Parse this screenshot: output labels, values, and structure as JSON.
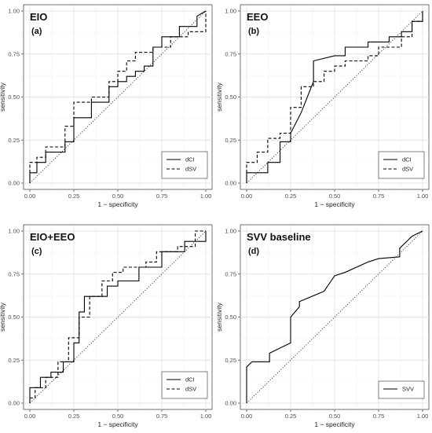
{
  "chart_data": [
    {
      "type": "line",
      "title": "EIO",
      "subtitle": "(a)",
      "xlabel": "1 − specificity",
      "ylabel": "sensitivity",
      "xlim": [
        0,
        1
      ],
      "ylim": [
        0,
        1
      ],
      "x_ticks": [
        "0.00",
        "0.25",
        "0.50",
        "0.75",
        "1.00"
      ],
      "y_ticks": [
        "0.00",
        "0.25",
        "0.50",
        "0.75",
        "1.00"
      ],
      "grid": true,
      "legend_position": "bottom-right",
      "diagonal": true,
      "series": [
        {
          "name": "dCI",
          "style": "solid",
          "x": [
            0,
            0,
            0.04,
            0.04,
            0.09,
            0.09,
            0.2,
            0.2,
            0.25,
            0.25,
            0.35,
            0.35,
            0.45,
            0.45,
            0.5,
            0.5,
            0.55,
            0.55,
            0.6,
            0.6,
            0.65,
            0.65,
            0.7,
            0.7,
            0.75,
            0.75,
            0.85,
            0.85,
            0.95,
            0.95,
            1.0
          ],
          "y": [
            0,
            0.06,
            0.06,
            0.12,
            0.12,
            0.18,
            0.18,
            0.24,
            0.24,
            0.38,
            0.38,
            0.47,
            0.47,
            0.56,
            0.56,
            0.59,
            0.59,
            0.62,
            0.62,
            0.65,
            0.65,
            0.68,
            0.68,
            0.79,
            0.79,
            0.85,
            0.85,
            0.91,
            0.91,
            0.97,
            1.0
          ]
        },
        {
          "name": "dSV",
          "style": "dashed",
          "x": [
            0,
            0,
            0.04,
            0.04,
            0.09,
            0.09,
            0.2,
            0.2,
            0.25,
            0.25,
            0.35,
            0.35,
            0.45,
            0.45,
            0.5,
            0.5,
            0.55,
            0.55,
            0.6,
            0.6,
            0.7,
            0.7,
            0.8,
            0.8,
            0.9,
            0.9,
            1.0,
            1.0
          ],
          "y": [
            0,
            0.12,
            0.12,
            0.15,
            0.15,
            0.21,
            0.21,
            0.33,
            0.33,
            0.47,
            0.47,
            0.5,
            0.5,
            0.59,
            0.59,
            0.65,
            0.65,
            0.71,
            0.71,
            0.76,
            0.76,
            0.79,
            0.79,
            0.85,
            0.85,
            0.88,
            0.88,
            1.0
          ]
        }
      ]
    },
    {
      "type": "line",
      "title": "EEO",
      "subtitle": "(b)",
      "xlabel": "1 − specificity",
      "ylabel": "sensitivity",
      "xlim": [
        0,
        1
      ],
      "ylim": [
        0,
        1
      ],
      "x_ticks": [
        "0.00",
        "0.25",
        "0.50",
        "0.75",
        "1.00"
      ],
      "y_ticks": [
        "0.00",
        "0.25",
        "0.50",
        "0.75",
        "1.00"
      ],
      "grid": true,
      "legend_position": "bottom-right",
      "diagonal": true,
      "series": [
        {
          "name": "dCI",
          "style": "solid",
          "x": [
            0,
            0,
            0.12,
            0.12,
            0.19,
            0.19,
            0.25,
            0.25,
            0.31,
            0.38,
            0.38,
            0.5,
            0.56,
            0.56,
            0.69,
            0.69,
            0.81,
            0.81,
            0.88,
            0.88,
            0.94,
            0.94,
            1.0,
            1.0
          ],
          "y": [
            0,
            0.06,
            0.06,
            0.12,
            0.12,
            0.24,
            0.24,
            0.29,
            0.41,
            0.59,
            0.71,
            0.74,
            0.74,
            0.79,
            0.79,
            0.82,
            0.82,
            0.85,
            0.85,
            0.88,
            0.88,
            0.94,
            0.94,
            1.0
          ]
        },
        {
          "name": "dSV",
          "style": "dashed",
          "x": [
            0,
            0,
            0.06,
            0.06,
            0.12,
            0.12,
            0.19,
            0.19,
            0.25,
            0.25,
            0.31,
            0.31,
            0.38,
            0.38,
            0.44,
            0.44,
            0.5,
            0.5,
            0.56,
            0.56,
            0.69,
            0.69,
            0.75,
            0.75,
            0.88,
            0.88,
            0.94,
            0.94,
            1.0,
            1.0
          ],
          "y": [
            0,
            0.12,
            0.12,
            0.18,
            0.18,
            0.26,
            0.26,
            0.29,
            0.29,
            0.44,
            0.44,
            0.56,
            0.56,
            0.59,
            0.59,
            0.65,
            0.65,
            0.68,
            0.68,
            0.71,
            0.71,
            0.74,
            0.74,
            0.79,
            0.79,
            0.85,
            0.85,
            0.94,
            0.94,
            1.0
          ]
        }
      ]
    },
    {
      "type": "line",
      "title": "EIO+EEO",
      "subtitle": "(c)",
      "xlabel": "1 − specificity",
      "ylabel": "sensitivity",
      "xlim": [
        0,
        1
      ],
      "ylim": [
        0,
        1
      ],
      "x_ticks": [
        "0.00",
        "0.25",
        "0.50",
        "0.75",
        "1.00"
      ],
      "y_ticks": [
        "0.00",
        "0.25",
        "0.50",
        "0.75",
        "1.00"
      ],
      "grid": true,
      "legend_position": "bottom-right",
      "diagonal": true,
      "series": [
        {
          "name": "dCI",
          "style": "solid",
          "x": [
            0,
            0,
            0.06,
            0.06,
            0.12,
            0.12,
            0.19,
            0.19,
            0.25,
            0.25,
            0.28,
            0.28,
            0.31,
            0.31,
            0.44,
            0.44,
            0.5,
            0.5,
            0.62,
            0.62,
            0.75,
            0.75,
            0.88,
            0.88,
            1.0,
            1.0
          ],
          "y": [
            0,
            0.09,
            0.09,
            0.15,
            0.15,
            0.18,
            0.18,
            0.24,
            0.24,
            0.35,
            0.35,
            0.53,
            0.53,
            0.62,
            0.62,
            0.68,
            0.68,
            0.71,
            0.71,
            0.79,
            0.79,
            0.88,
            0.88,
            0.94,
            0.94,
            1.0
          ]
        },
        {
          "name": "dSV",
          "style": "dashed",
          "x": [
            0,
            0,
            0.03,
            0.03,
            0.09,
            0.09,
            0.16,
            0.16,
            0.22,
            0.22,
            0.28,
            0.28,
            0.34,
            0.34,
            0.41,
            0.41,
            0.47,
            0.47,
            0.53,
            0.53,
            0.66,
            0.66,
            0.72,
            0.72,
            0.84,
            0.84,
            0.94,
            0.94,
            1.0
          ],
          "y": [
            0,
            0.03,
            0.03,
            0.09,
            0.09,
            0.15,
            0.15,
            0.24,
            0.24,
            0.38,
            0.38,
            0.5,
            0.5,
            0.62,
            0.62,
            0.71,
            0.71,
            0.76,
            0.76,
            0.79,
            0.79,
            0.82,
            0.82,
            0.88,
            0.88,
            0.91,
            0.91,
            1.0,
            1.0
          ]
        }
      ]
    },
    {
      "type": "line",
      "title": "SVV baseline",
      "subtitle": "(d)",
      "xlabel": "1 − specificity",
      "ylabel": "sensitivity",
      "xlim": [
        0,
        1
      ],
      "ylim": [
        0,
        1
      ],
      "x_ticks": [
        "0.00",
        "0.25",
        "0.50",
        "0.75",
        "1.00"
      ],
      "y_ticks": [
        "0.00",
        "0.25",
        "0.50",
        "0.75",
        "1.00"
      ],
      "grid": true,
      "legend_position": "bottom-right",
      "diagonal": true,
      "series": [
        {
          "name": "SVV",
          "style": "solid",
          "x": [
            0,
            0,
            0.03,
            0.13,
            0.13,
            0.19,
            0.25,
            0.25,
            0.3,
            0.3,
            0.44,
            0.5,
            0.56,
            0.69,
            0.75,
            0.87,
            0.87,
            0.94,
            1.0
          ],
          "y": [
            0,
            0.21,
            0.24,
            0.24,
            0.29,
            0.32,
            0.35,
            0.5,
            0.56,
            0.59,
            0.65,
            0.74,
            0.76,
            0.82,
            0.84,
            0.85,
            0.9,
            0.97,
            1.0
          ]
        }
      ]
    }
  ]
}
